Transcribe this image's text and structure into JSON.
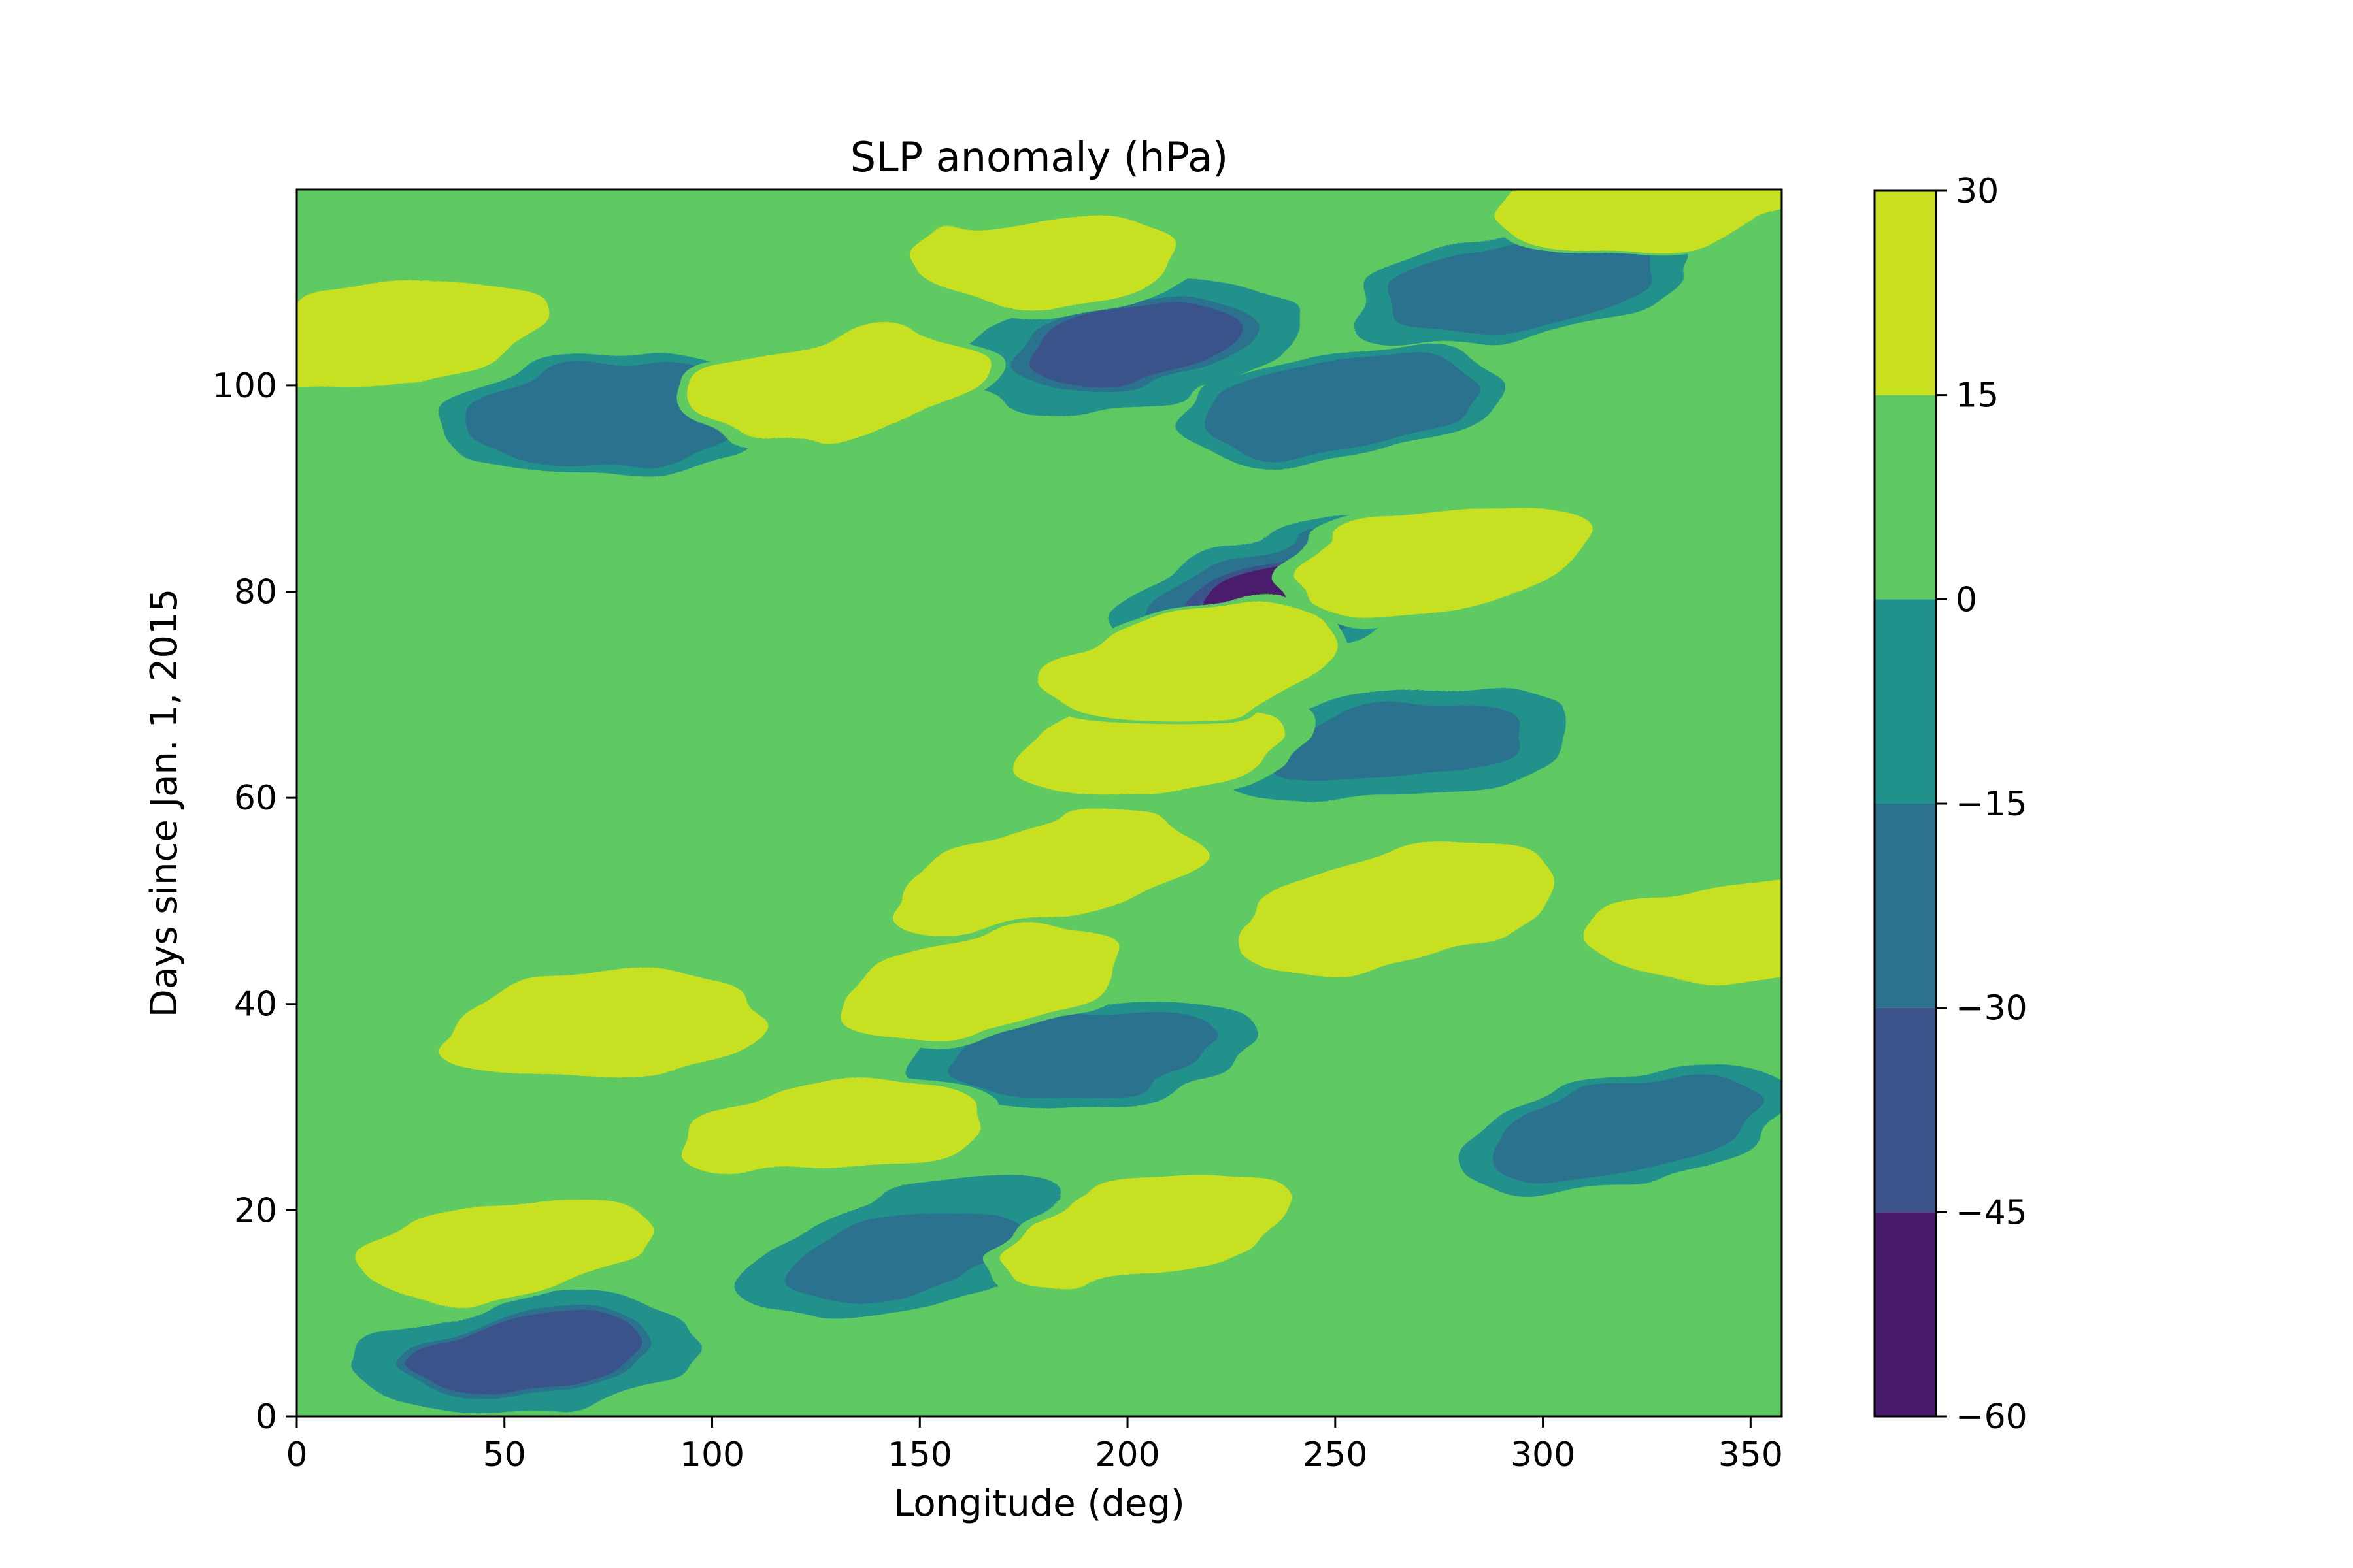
{
  "chart_data": {
    "type": "heatmap",
    "subtype": "filled-contour (Hovmöller diagram)",
    "title": "SLP anomaly (hPa)",
    "xlabel": "Longitude (deg)",
    "ylabel": "Days since Jan. 1, 2015",
    "xlim": [
      0,
      357.5
    ],
    "ylim": [
      0,
      119
    ],
    "xticks": [
      0,
      50,
      100,
      150,
      200,
      250,
      300,
      350
    ],
    "yticks": [
      0,
      20,
      40,
      60,
      80,
      100
    ],
    "grid": false,
    "colorbar": {
      "position": "right",
      "levels": [
        -60,
        -45,
        -30,
        -15,
        0,
        15,
        30
      ],
      "colors": [
        "#481a6c",
        "#3b528b",
        "#2c728e",
        "#21918c",
        "#5ec962",
        "#c8e020"
      ]
    },
    "features": [
      {
        "lon": 238,
        "day": 80,
        "value": -52
      },
      {
        "lon": 200,
        "day": 104,
        "value": -35
      },
      {
        "lon": 55,
        "day": 6,
        "value": -33
      },
      {
        "lon": 148,
        "day": 16,
        "value": -28
      },
      {
        "lon": 265,
        "day": 65,
        "value": -27
      },
      {
        "lon": 190,
        "day": 35,
        "value": -24
      },
      {
        "lon": 295,
        "day": 110,
        "value": -22
      },
      {
        "lon": 250,
        "day": 98,
        "value": -20
      },
      {
        "lon": 75,
        "day": 97,
        "value": -20
      },
      {
        "lon": 320,
        "day": 28,
        "value": -22
      },
      {
        "lon": 205,
        "day": 65,
        "value": 22
      },
      {
        "lon": 180,
        "day": 112,
        "value": 22
      },
      {
        "lon": 165,
        "day": 42,
        "value": 20
      },
      {
        "lon": 275,
        "day": 83,
        "value": 19
      },
      {
        "lon": 130,
        "day": 28,
        "value": 19
      },
      {
        "lon": 205,
        "day": 18,
        "value": 18
      },
      {
        "lon": 50,
        "day": 16,
        "value": 18
      },
      {
        "lon": 345,
        "day": 47,
        "value": 18
      },
      {
        "lon": 215,
        "day": 73,
        "value": 17
      },
      {
        "lon": 25,
        "day": 105,
        "value": 17
      },
      {
        "lon": 325,
        "day": 118,
        "value": 17
      },
      {
        "lon": 180,
        "day": 53,
        "value": 17
      },
      {
        "lon": 130,
        "day": 100,
        "value": 17
      },
      {
        "lon": 75,
        "day": 38,
        "value": 16
      },
      {
        "lon": 265,
        "day": 49,
        "value": 16
      }
    ]
  }
}
